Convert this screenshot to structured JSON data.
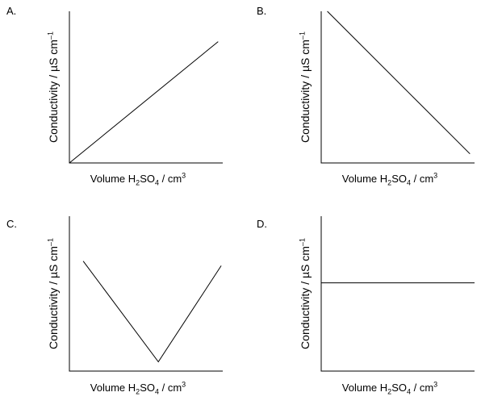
{
  "chart_data": [
    {
      "panel": "A.",
      "type": "line",
      "ylabel": "Conductivity / µS cm",
      "ylabel_sup": "–1",
      "xlabel_pre": "Volume H",
      "xlabel_sub1": "2",
      "xlabel_mid": "SO",
      "xlabel_sub2": "4",
      "xlabel_post": " / cm",
      "xlabel_sup": "3",
      "xlim": [
        0,
        1
      ],
      "ylim": [
        0,
        1
      ],
      "series": [
        {
          "x": [
            0,
            0.97
          ],
          "y": [
            0,
            0.8
          ]
        }
      ]
    },
    {
      "panel": "B.",
      "type": "line",
      "ylabel": "Conductivity / µS cm",
      "ylabel_sup": "–1",
      "xlabel_pre": "Volume H",
      "xlabel_sub1": "2",
      "xlabel_mid": "SO",
      "xlabel_sub2": "4",
      "xlabel_post": " / cm",
      "xlabel_sup": "3",
      "xlim": [
        0,
        1
      ],
      "ylim": [
        0,
        1
      ],
      "series": [
        {
          "x": [
            0.04,
            0.97
          ],
          "y": [
            1.0,
            0.06
          ]
        }
      ]
    },
    {
      "panel": "C.",
      "type": "line",
      "ylabel": "Conductivity / µS cm",
      "ylabel_sup": "–1",
      "xlabel_pre": "Volume H",
      "xlabel_sub1": "2",
      "xlabel_mid": "SO",
      "xlabel_sub2": "4",
      "xlabel_post": " / cm",
      "xlabel_sup": "3",
      "xlim": [
        0,
        1
      ],
      "ylim": [
        0,
        1
      ],
      "series": [
        {
          "x": [
            0.09,
            0.58,
            0.99
          ],
          "y": [
            0.71,
            0.06,
            0.68
          ]
        }
      ]
    },
    {
      "panel": "D.",
      "type": "line",
      "ylabel": "Conductivity / µS cm",
      "ylabel_sup": "–1",
      "xlabel_pre": "Volume H",
      "xlabel_sub1": "2",
      "xlabel_mid": "SO",
      "xlabel_sub2": "4",
      "xlabel_post": " / cm",
      "xlabel_sup": "3",
      "xlim": [
        0,
        1
      ],
      "ylim": [
        0,
        1
      ],
      "series": [
        {
          "x": [
            0,
            1.0
          ],
          "y": [
            0.57,
            0.57
          ]
        }
      ]
    }
  ]
}
